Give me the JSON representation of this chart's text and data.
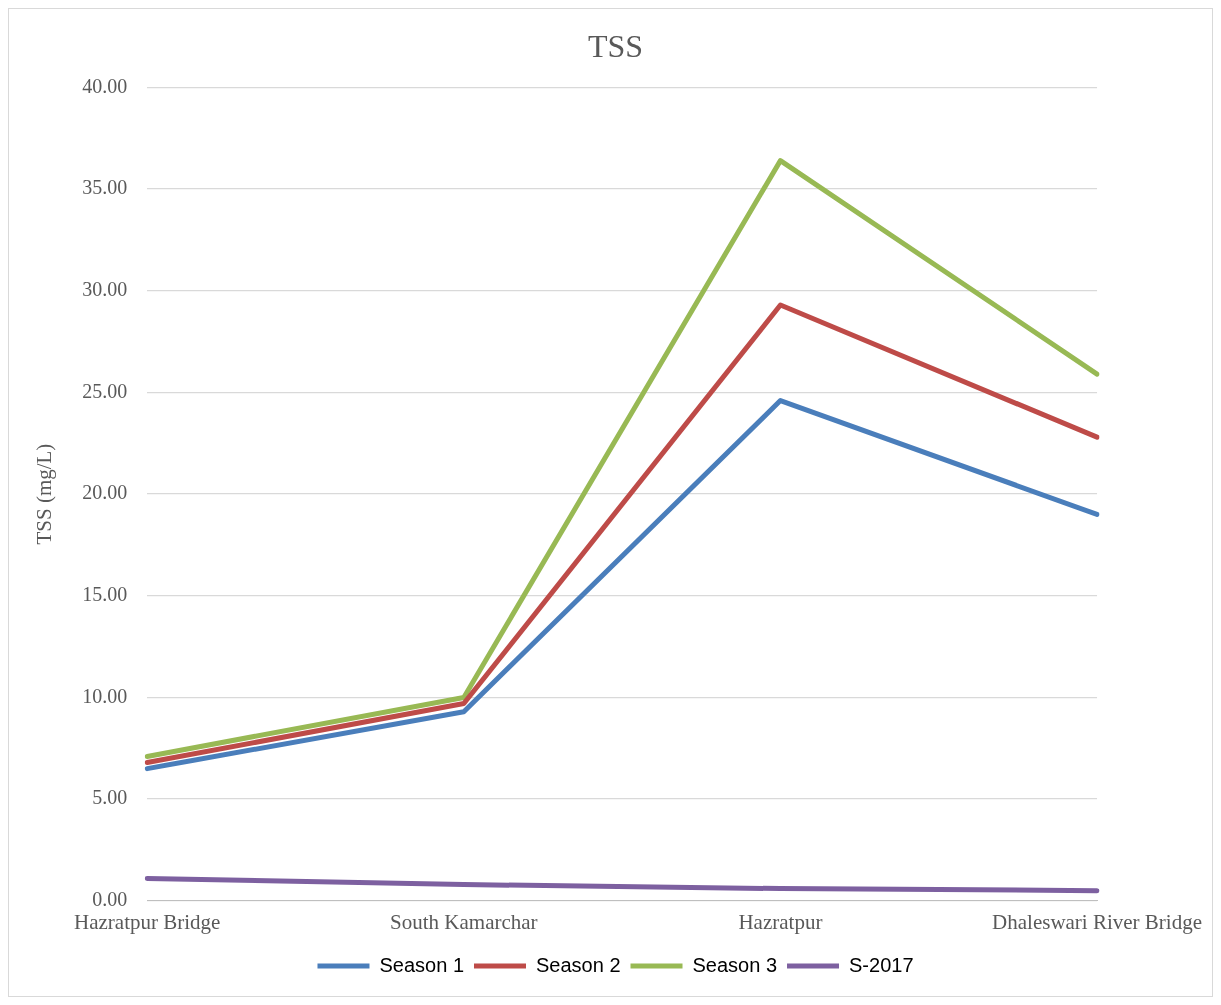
{
  "chart_data": {
    "type": "line",
    "title": "TSS",
    "ylabel": "TSS (mg/L)",
    "categories": [
      "Hazratpur Bridge",
      "South Kamarchar",
      "Hazratpur",
      "Dhaleswari River Bridge"
    ],
    "series": [
      {
        "name": "Season 1",
        "color": "#4a7ebb",
        "values": [
          6.5,
          9.3,
          24.6,
          19.0
        ]
      },
      {
        "name": "Season 2",
        "color": "#be4b48",
        "values": [
          6.8,
          9.7,
          29.3,
          22.8
        ]
      },
      {
        "name": "Season 3",
        "color": "#98b954",
        "values": [
          7.1,
          10.0,
          36.4,
          25.9
        ]
      },
      {
        "name": "S-2017",
        "color": "#7d60a0",
        "values": [
          1.1,
          0.8,
          0.6,
          0.5
        ]
      }
    ],
    "ylim": [
      0,
      40
    ],
    "yticks": [
      {
        "value": 0,
        "label": "0.00"
      },
      {
        "value": 5,
        "label": "5.00"
      },
      {
        "value": 10,
        "label": "10.00"
      },
      {
        "value": 15,
        "label": "15.00"
      },
      {
        "value": 20,
        "label": "20.00"
      },
      {
        "value": 25,
        "label": "25.00"
      },
      {
        "value": 30,
        "label": "30.00"
      },
      {
        "value": 35,
        "label": "35.00"
      },
      {
        "value": 40,
        "label": "40.00"
      }
    ],
    "grid": "y",
    "legend": "bottom",
    "marker": "none",
    "line_style": "solid"
  }
}
